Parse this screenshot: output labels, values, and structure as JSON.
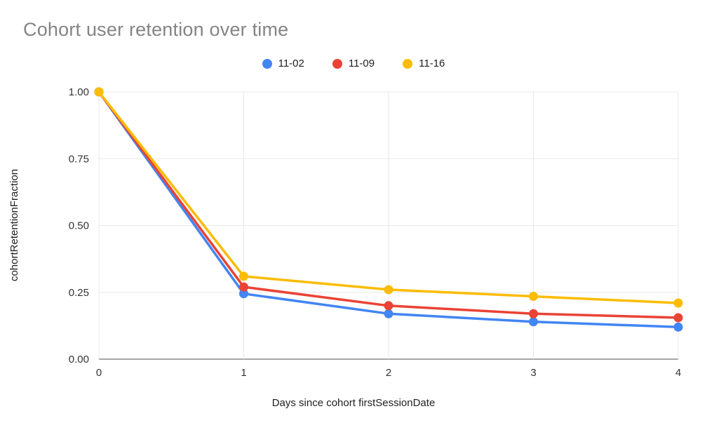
{
  "chart_data": {
    "type": "line",
    "title": "Cohort user retention over time",
    "xlabel": "Days since cohort firstSessionDate",
    "ylabel": "cohortRetentionFraction",
    "x": [
      0,
      1,
      2,
      3,
      4
    ],
    "xtick_labels": [
      "0",
      "1",
      "2",
      "3",
      "4"
    ],
    "xlim": [
      0,
      4
    ],
    "ylim": [
      0,
      1
    ],
    "yticks": [
      0,
      0.25,
      0.5,
      0.75,
      1
    ],
    "ytick_labels": [
      "0.00",
      "0.25",
      "0.50",
      "0.75",
      "1.00"
    ],
    "grid": true,
    "legend_position": "top-center",
    "series": [
      {
        "name": "11-02",
        "color": "#4285F4",
        "values": [
          1.0,
          0.245,
          0.17,
          0.14,
          0.12
        ]
      },
      {
        "name": "11-09",
        "color": "#EA4335",
        "values": [
          1.0,
          0.27,
          0.2,
          0.17,
          0.155
        ]
      },
      {
        "name": "11-16",
        "color": "#FBBC04",
        "values": [
          1.0,
          0.31,
          0.26,
          0.235,
          0.21
        ]
      }
    ],
    "colors": {
      "title_text": "#848484",
      "axis_text": "#333333",
      "gridline": "#e8e8e8",
      "axis_line": "#4d4d4d",
      "background": "#ffffff"
    }
  }
}
